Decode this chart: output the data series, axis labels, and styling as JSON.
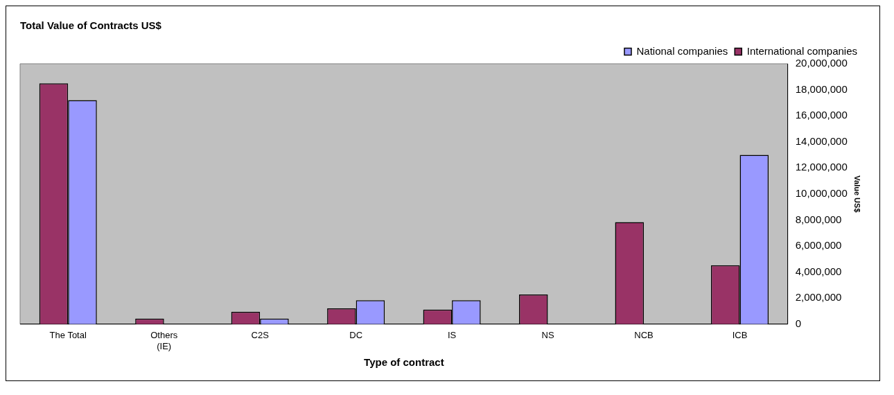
{
  "chart_data": {
    "type": "bar",
    "title": "Total Value of Contracts US$",
    "xlabel": "Type of contract",
    "ylabel": "Value US$",
    "categories": [
      "The Total",
      "Others (IE)",
      "C2S",
      "DC",
      "IS",
      "NS",
      "NCB",
      "ICB"
    ],
    "series": [
      {
        "name": "International companies",
        "color": "#993366",
        "values": [
          18500000,
          430000,
          950000,
          1210000,
          1120000,
          2280000,
          7840000,
          4530000
        ]
      },
      {
        "name": "National companies",
        "color": "#9999ff",
        "values": [
          17200000,
          null,
          430000,
          1840000,
          1840000,
          null,
          null,
          13000000
        ]
      }
    ],
    "ylim": [
      0,
      20000000
    ],
    "yticks": [
      0,
      {
        "value": 2000000,
        "label": "2,000,000"
      },
      {
        "value": 4000000,
        "label": "4,000,000"
      },
      {
        "value": 6000000,
        "label": "6,000,000"
      },
      {
        "value": 8000000,
        "label": "8,000,000"
      },
      {
        "value": 10000000,
        "label": "10,000,000"
      },
      {
        "value": 12000000,
        "label": "12,000,000"
      },
      {
        "value": 14000000,
        "label": "14,000,000"
      },
      {
        "value": 16000000,
        "label": "16,000,000"
      },
      {
        "value": 18000000,
        "label": "18,000,000"
      },
      {
        "value": 20000000,
        "label": "20,000,000"
      }
    ],
    "grid": false,
    "legend": "top right"
  }
}
